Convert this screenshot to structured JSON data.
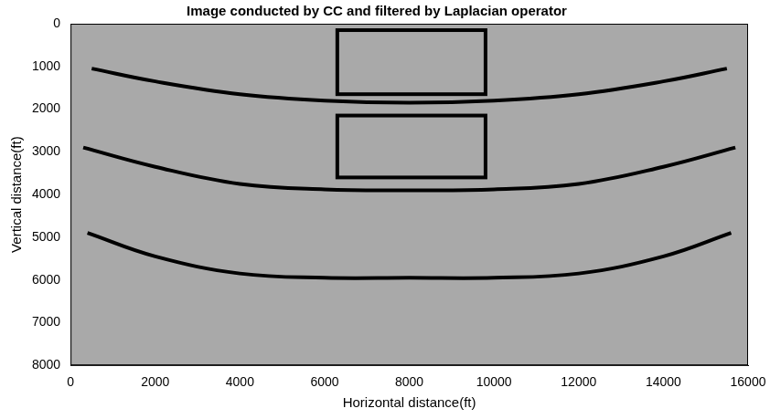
{
  "chart_data": {
    "type": "image",
    "title": "Image conducted by CC and filtered by Laplacian operator",
    "x_label": "Horizontal distance(ft)",
    "y_label": "Vertical distance(ft)",
    "xlim": [
      0,
      16000
    ],
    "ylim": [
      8000,
      0
    ],
    "xticks": [
      0,
      2000,
      4000,
      6000,
      8000,
      10000,
      12000,
      14000,
      16000
    ],
    "yticks": [
      0,
      1000,
      2000,
      3000,
      4000,
      5000,
      6000,
      7000,
      8000
    ],
    "grid": false,
    "series": [
      {
        "color": "#000000",
        "x": [
          500,
          2000,
          4000,
          6000,
          8000,
          10000,
          12000,
          14000,
          15500
        ],
        "values": [
          1050,
          1350,
          1650,
          1800,
          1850,
          1800,
          1650,
          1350,
          1050
        ]
      },
      {
        "color": "#000000",
        "x": [
          300,
          2000,
          4000,
          6000,
          8000,
          10000,
          12000,
          14000,
          15700
        ],
        "values": [
          2900,
          3350,
          3750,
          3880,
          3900,
          3880,
          3750,
          3350,
          2900
        ]
      },
      {
        "color": "#000000",
        "x": [
          400,
          2000,
          4000,
          6000,
          8000,
          10000,
          12000,
          14000,
          15600
        ],
        "values": [
          4900,
          5450,
          5850,
          5950,
          5950,
          5950,
          5850,
          5450,
          4900
        ]
      }
    ],
    "boxes": [
      {
        "x": [
          6300,
          9800
        ],
        "y": [
          150,
          1650
        ]
      },
      {
        "x": [
          6300,
          9800
        ],
        "y": [
          2150,
          3600
        ]
      }
    ]
  }
}
